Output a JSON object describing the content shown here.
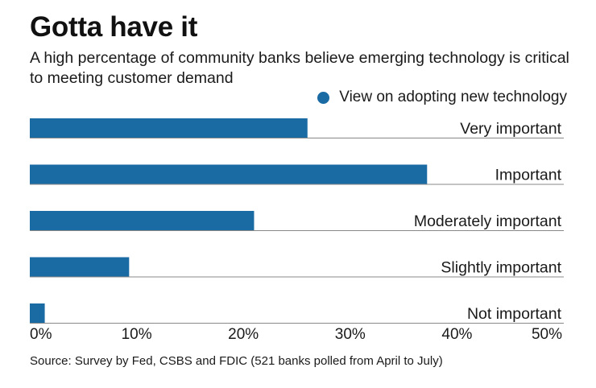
{
  "header": {
    "title": "Gotta have it",
    "subtitle": "A high percentage of community banks believe emerging technology is critical to meeting customer demand"
  },
  "legend": {
    "label": "View on adopting new technology",
    "color": "#1a6aa4"
  },
  "footer": {
    "source": "Source: Survey by Fed, CSBS and FDIC (521 banks polled from April to July)"
  },
  "colors": {
    "bar": "#1a6aa4",
    "baseline": "#888888",
    "text": "#1a1a1a"
  },
  "chart_data": {
    "type": "bar",
    "orientation": "horizontal",
    "title": "Gotta have it",
    "xlabel": "",
    "ylabel": "",
    "xlim": [
      0,
      50
    ],
    "ticks": [
      0,
      10,
      20,
      30,
      40,
      50
    ],
    "tick_labels": [
      "0%",
      "10%",
      "20%",
      "30%",
      "40%",
      "50%"
    ],
    "categories": [
      "Very important",
      "Important",
      "Moderately important",
      "Slightly important",
      "Not important"
    ],
    "series": [
      {
        "name": "View on adopting new technology",
        "values": [
          26,
          37.2,
          21,
          9.3,
          1.4
        ]
      }
    ],
    "legend_position": "top-right",
    "grid": false
  }
}
